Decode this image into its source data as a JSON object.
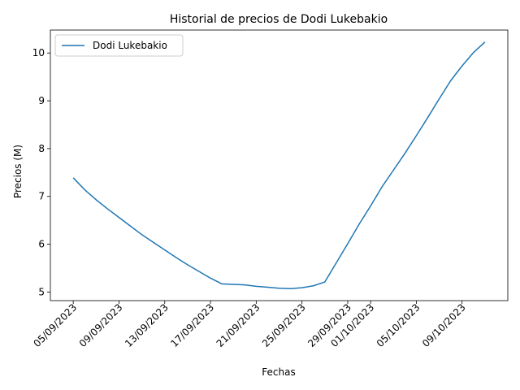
{
  "chart_data": {
    "type": "line",
    "title": "Historial de precios de Dodi Lukebakio",
    "xlabel": "Fechas",
    "ylabel": "Precios (M)",
    "x": [
      "2023-09-05",
      "2023-09-06",
      "2023-09-07",
      "2023-09-08",
      "2023-09-09",
      "2023-09-10",
      "2023-09-11",
      "2023-09-12",
      "2023-09-13",
      "2023-09-14",
      "2023-09-15",
      "2023-09-16",
      "2023-09-17",
      "2023-09-18",
      "2023-09-19",
      "2023-09-20",
      "2023-09-21",
      "2023-09-22",
      "2023-09-23",
      "2023-09-24",
      "2023-09-25",
      "2023-09-26",
      "2023-09-27",
      "2023-09-28",
      "2023-09-29",
      "2023-09-30",
      "2023-10-01",
      "2023-10-02",
      "2023-10-03",
      "2023-10-04",
      "2023-10-05",
      "2023-10-06",
      "2023-10-07",
      "2023-10-08",
      "2023-10-09",
      "2023-10-10",
      "2023-10-11"
    ],
    "series": [
      {
        "name": "Dodi Lukebakio",
        "color": "#1f77b4",
        "values": [
          7.39,
          7.14,
          6.93,
          6.74,
          6.56,
          6.38,
          6.2,
          6.04,
          5.88,
          5.72,
          5.57,
          5.43,
          5.29,
          5.17,
          5.16,
          5.15,
          5.12,
          5.1,
          5.08,
          5.07,
          5.09,
          5.13,
          5.21,
          5.61,
          6.01,
          6.42,
          6.8,
          7.2,
          7.55,
          7.9,
          8.27,
          8.65,
          9.04,
          9.42,
          9.73,
          10.01,
          10.23
        ]
      }
    ],
    "xticks": [
      {
        "date": "2023-09-05",
        "label": "05/09/2023"
      },
      {
        "date": "2023-09-09",
        "label": "09/09/2023"
      },
      {
        "date": "2023-09-13",
        "label": "13/09/2023"
      },
      {
        "date": "2023-09-17",
        "label": "17/09/2023"
      },
      {
        "date": "2023-09-21",
        "label": "21/09/2023"
      },
      {
        "date": "2023-09-25",
        "label": "25/09/2023"
      },
      {
        "date": "2023-09-29",
        "label": "29/09/2023"
      },
      {
        "date": "2023-10-01",
        "label": "01/10/2023"
      },
      {
        "date": "2023-10-05",
        "label": "05/10/2023"
      },
      {
        "date": "2023-10-09",
        "label": "09/10/2023"
      }
    ],
    "yticks": [
      {
        "value": 5,
        "label": "5"
      },
      {
        "value": 6,
        "label": "6"
      },
      {
        "value": 7,
        "label": "7"
      },
      {
        "value": 8,
        "label": "8"
      },
      {
        "value": 9,
        "label": "9"
      },
      {
        "value": 10,
        "label": "10"
      }
    ],
    "xlim": [
      "2023-09-03",
      "2023-10-13"
    ],
    "ylim": [
      4.82,
      10.48
    ],
    "grid": false,
    "legend": {
      "position": "top-left",
      "entries": [
        "Dodi Lukebakio"
      ]
    }
  }
}
